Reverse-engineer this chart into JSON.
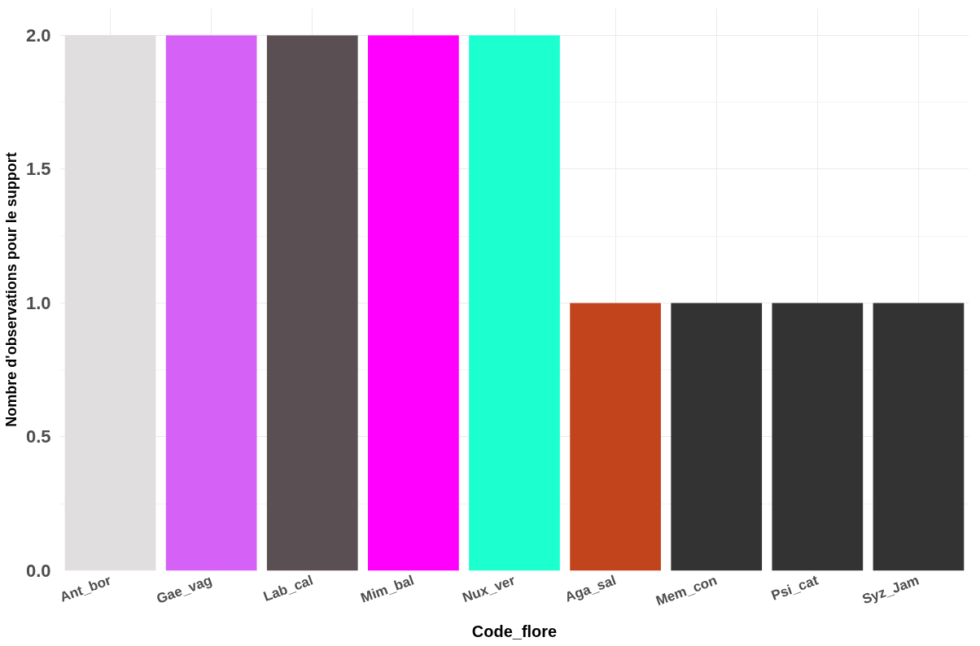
{
  "chart_data": {
    "type": "bar",
    "xlabel": "Code_flore",
    "ylabel": "Nombre d'observations pour le support",
    "categories": [
      "Ant_bor",
      "Gae_vag",
      "Lab_cal",
      "Mim_bal",
      "Nux_ver",
      "Aga_sal",
      "Mem_con",
      "Psi_cat",
      "Syz_Jam"
    ],
    "values": [
      2,
      2,
      2,
      2,
      2,
      1,
      1,
      1,
      1
    ],
    "colors": [
      "#e0dedf",
      "#d661f6",
      "#5a4f53",
      "#ff00ff",
      "#1cffcf",
      "#c2441c",
      "#333333",
      "#333333",
      "#333333"
    ],
    "ylim": [
      0,
      2.1
    ],
    "yticks": [
      {
        "value": 0,
        "label": "0.0"
      },
      {
        "value": 0.5,
        "label": "0.5"
      },
      {
        "value": 1,
        "label": "1.0"
      },
      {
        "value": 1.5,
        "label": "1.5"
      },
      {
        "value": 2,
        "label": "2.0"
      }
    ],
    "grid": true
  }
}
